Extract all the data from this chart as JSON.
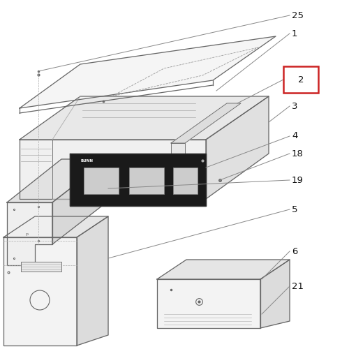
{
  "bg_color": "#ffffff",
  "line_color": "#666666",
  "label_color": "#111111",
  "red_box_color": "#cc2222",
  "figsize": [
    5.0,
    5.0
  ],
  "dpi": 100
}
